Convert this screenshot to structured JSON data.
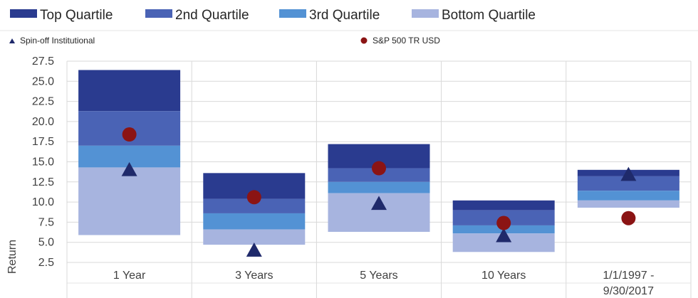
{
  "chart_data": {
    "type": "bar",
    "subtype": "floating-stacked-quartile-with-markers",
    "title": "",
    "xlabel": "",
    "ylabel": "Return",
    "ylim": [
      0,
      27.5
    ],
    "yticks": [
      2.5,
      5.0,
      7.5,
      10.0,
      12.5,
      15.0,
      17.5,
      20.0,
      22.5,
      25.0,
      27.5
    ],
    "ytick_labels": [
      "2.5",
      "5.0",
      "7.5",
      "10.0",
      "12.5",
      "15.0",
      "17.5",
      "20.0",
      "22.5",
      "25.0",
      "27.5"
    ],
    "grid": true,
    "legend_position": "top",
    "categories": [
      {
        "label": "1 Year",
        "lines": [
          "1 Year"
        ]
      },
      {
        "label": "3 Years",
        "lines": [
          "3 Years"
        ]
      },
      {
        "label": "5 Years",
        "lines": [
          "5 Years"
        ]
      },
      {
        "label": "10 Years",
        "lines": [
          "10 Years"
        ]
      },
      {
        "label": "1/1/1997 - 9/30/2017",
        "lines": [
          "1/1/1997 -",
          "9/30/2017"
        ]
      }
    ],
    "quartile_bounds": [
      [
        26.4,
        21.3,
        17.0,
        14.3,
        5.9
      ],
      [
        13.6,
        10.4,
        8.6,
        6.6,
        4.7
      ],
      [
        17.2,
        14.2,
        12.5,
        11.1,
        6.3
      ],
      [
        10.2,
        9.0,
        7.1,
        6.1,
        3.8
      ],
      [
        14.0,
        13.2,
        11.4,
        10.2,
        9.3
      ]
    ],
    "quartiles": [
      {
        "name": "Top Quartile",
        "color": "#2a3b8f"
      },
      {
        "name": "2nd Quartile",
        "color": "#4a63b5"
      },
      {
        "name": "3rd Quartile",
        "color": "#5392d4"
      },
      {
        "name": "Bottom Quartile",
        "color": "#a7b4df"
      }
    ],
    "markers": [
      {
        "name": "Spin-off Institutional",
        "shape": "triangle",
        "color": "#1f2a6b",
        "values": [
          14.0,
          4.0,
          9.8,
          5.8,
          13.4
        ]
      },
      {
        "name": "S&P 500 TR USD",
        "shape": "circle",
        "color": "#8b1414",
        "values": [
          18.4,
          10.6,
          14.2,
          7.4,
          8.0
        ]
      }
    ]
  }
}
